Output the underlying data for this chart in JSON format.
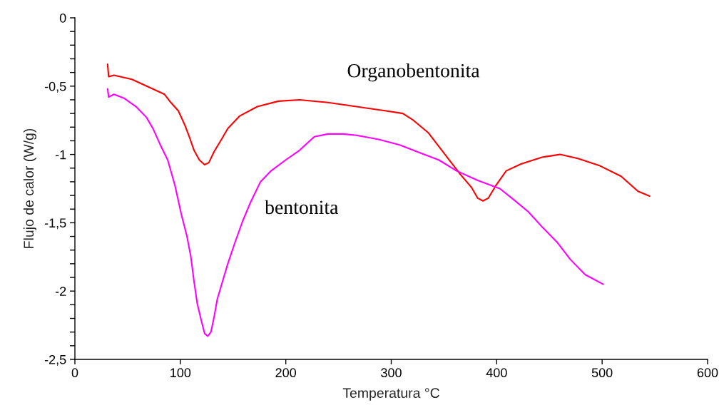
{
  "chart_data": {
    "type": "line",
    "xlabel": "Temperatura °C",
    "ylabel": "Flujo de calor (W/g)",
    "xlim": [
      0,
      600
    ],
    "xticks": [
      0,
      100,
      200,
      300,
      400,
      500,
      600
    ],
    "ylim": [
      -2.5,
      0
    ],
    "yticks": [
      {
        "value": 0,
        "label": "0"
      },
      {
        "value": -0.1,
        "label": null
      },
      {
        "value": -0.2,
        "label": null
      },
      {
        "value": -0.3,
        "label": null
      },
      {
        "value": -0.4,
        "label": null
      },
      {
        "value": -0.5,
        "label": "-0,5"
      },
      {
        "value": -0.6,
        "label": null
      },
      {
        "value": -0.7,
        "label": null
      },
      {
        "value": -0.8,
        "label": null
      },
      {
        "value": -0.9,
        "label": null
      },
      {
        "value": -1.0,
        "label": "-1"
      },
      {
        "value": -1.1,
        "label": null
      },
      {
        "value": -1.2,
        "label": null
      },
      {
        "value": -1.3,
        "label": null
      },
      {
        "value": -1.4,
        "label": null
      },
      {
        "value": -1.5,
        "label": "-1,5"
      },
      {
        "value": -1.6,
        "label": null
      },
      {
        "value": -1.7,
        "label": null
      },
      {
        "value": -1.8,
        "label": null
      },
      {
        "value": -1.9,
        "label": null
      },
      {
        "value": -2.0,
        "label": "-2"
      },
      {
        "value": -2.1,
        "label": null
      },
      {
        "value": -2.2,
        "label": null
      },
      {
        "value": -2.3,
        "label": null
      },
      {
        "value": -2.4,
        "label": null
      },
      {
        "value": -2.5,
        "label": "-2,5"
      }
    ],
    "grid": false,
    "legend": false,
    "marker": "none",
    "line_style": "solid",
    "series": [
      {
        "name": "Organobentonita",
        "color": "#ff0000",
        "x": [
          31,
          32,
          37,
          54,
          71,
          85,
          91,
          98,
          104,
          108,
          113,
          118,
          123,
          127,
          132,
          139,
          145,
          156,
          173,
          193,
          213,
          240,
          267,
          294,
          311,
          321,
          335,
          345,
          355,
          366,
          376,
          382,
          387,
          392,
          399,
          409,
          423,
          443,
          460,
          477,
          497,
          518,
          534,
          545
        ],
        "values": [
          -0.34,
          -0.43,
          -0.42,
          -0.45,
          -0.51,
          -0.56,
          -0.62,
          -0.68,
          -0.78,
          -0.86,
          -0.97,
          -1.04,
          -1.075,
          -1.06,
          -0.98,
          -0.89,
          -0.81,
          -0.72,
          -0.65,
          -0.61,
          -0.6,
          -0.62,
          -0.65,
          -0.68,
          -0.7,
          -0.75,
          -0.84,
          -0.94,
          -1.04,
          -1.15,
          -1.24,
          -1.32,
          -1.34,
          -1.32,
          -1.23,
          -1.12,
          -1.07,
          -1.02,
          -1.0,
          -1.03,
          -1.08,
          -1.16,
          -1.27,
          -1.305
        ]
      },
      {
        "name": "bentonita",
        "color": "#ff00ff",
        "x": [
          31,
          32,
          37,
          47,
          58,
          68,
          74,
          81,
          88,
          95,
          101,
          106,
          110,
          113,
          116,
          120,
          123,
          126,
          129,
          132,
          135,
          140,
          145,
          152,
          159,
          166,
          176,
          186,
          200,
          213,
          227,
          240,
          254,
          267,
          288,
          308,
          328,
          345,
          362,
          382,
          403,
          416,
          430,
          443,
          457,
          470,
          484,
          501
        ],
        "values": [
          -0.52,
          -0.58,
          -0.56,
          -0.59,
          -0.65,
          -0.73,
          -0.81,
          -0.93,
          -1.04,
          -1.23,
          -1.44,
          -1.59,
          -1.75,
          -1.93,
          -2.09,
          -2.22,
          -2.31,
          -2.33,
          -2.3,
          -2.19,
          -2.06,
          -1.93,
          -1.8,
          -1.64,
          -1.49,
          -1.36,
          -1.2,
          -1.12,
          -1.04,
          -0.97,
          -0.87,
          -0.85,
          -0.85,
          -0.86,
          -0.89,
          -0.93,
          -0.99,
          -1.04,
          -1.12,
          -1.19,
          -1.25,
          -1.33,
          -1.42,
          -1.53,
          -1.64,
          -1.77,
          -1.88,
          -1.95
        ]
      }
    ]
  }
}
